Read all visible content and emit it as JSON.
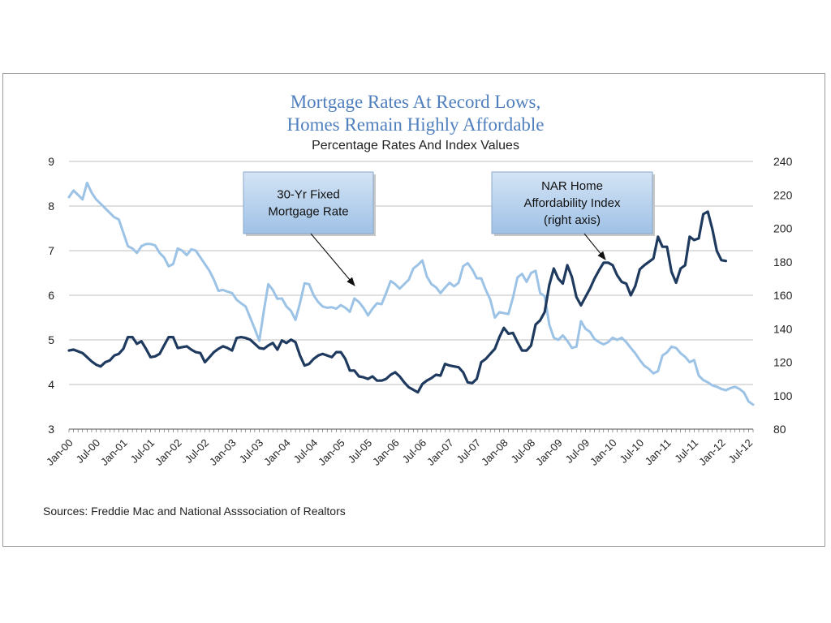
{
  "title_line1": "Mortgage Rates At Record Lows,",
  "title_line2": "Homes Remain Highly Affordable",
  "subtitle": "Percentage Rates And Index Values",
  "source": "Sources:  Freddie Mac and National Asssociation of Realtors",
  "colors": {
    "mortgage": "#9cc3e6",
    "affordability": "#1f3a5f",
    "grid": "#bfbfbf",
    "callout_fill": "#b3cfec",
    "title": "#4f7fbd"
  },
  "chart_data": {
    "type": "line",
    "title": "Mortgage Rates At Record Lows, Homes Remain Highly Affordable",
    "subtitle": "Percentage Rates And Index Values",
    "x_ticks": [
      "Jan-00",
      "Jul-00",
      "Jan-01",
      "Jul-01",
      "Jan-02",
      "Jul-02",
      "Jan-03",
      "Jul-03",
      "Jan-04",
      "Jul-04",
      "Jan-05",
      "Jul-05",
      "Jan-06",
      "Jul-06",
      "Jan-07",
      "Jul-07",
      "Jan-08",
      "Jul-08",
      "Jan-09",
      "Jul-09",
      "Jan-10",
      "Jul-10",
      "Jan-11",
      "Jul-11",
      "Jan-12",
      "Jul-12"
    ],
    "y_left": {
      "min": 3,
      "max": 9,
      "ticks": [
        "3",
        "4",
        "5",
        "6",
        "7",
        "8",
        "9"
      ]
    },
    "y_right": {
      "min": 80,
      "max": 240,
      "ticks": [
        "80",
        "100",
        "120",
        "140",
        "160",
        "180",
        "200",
        "220",
        "240"
      ]
    },
    "grid": "horizontal",
    "callouts": [
      {
        "label_lines": [
          "30-Yr Fixed",
          "Mortgage Rate"
        ]
      },
      {
        "label_lines": [
          "NAR Home",
          "Affordability Index",
          "(right axis)"
        ]
      }
    ],
    "series": [
      {
        "name": "30-Yr Fixed Mortgage Rate",
        "axis": "left",
        "start": "Jan-00",
        "frequency": "monthly",
        "values": [
          8.2,
          8.35,
          8.25,
          8.15,
          8.52,
          8.3,
          8.15,
          8.05,
          7.95,
          7.85,
          7.75,
          7.7,
          7.4,
          7.1,
          7.05,
          6.95,
          7.1,
          7.15,
          7.15,
          7.12,
          6.95,
          6.85,
          6.65,
          6.7,
          7.05,
          7.0,
          6.9,
          7.03,
          7.0,
          6.85,
          6.7,
          6.55,
          6.35,
          6.1,
          6.12,
          6.08,
          6.05,
          5.9,
          5.82,
          5.75,
          5.5,
          5.25,
          4.98,
          5.65,
          6.25,
          6.12,
          5.92,
          5.93,
          5.75,
          5.65,
          5.45,
          5.83,
          6.27,
          6.25,
          6.0,
          5.85,
          5.75,
          5.72,
          5.73,
          5.7,
          5.78,
          5.72,
          5.63,
          5.93,
          5.85,
          5.72,
          5.55,
          5.7,
          5.82,
          5.8,
          6.05,
          6.32,
          6.25,
          6.15,
          6.25,
          6.35,
          6.6,
          6.68,
          6.78,
          6.42,
          6.25,
          6.18,
          6.05,
          6.17,
          6.28,
          6.2,
          6.28,
          6.65,
          6.72,
          6.58,
          6.38,
          6.38,
          6.12,
          5.9,
          5.5,
          5.62,
          5.6,
          5.58,
          5.95,
          6.4,
          6.48,
          6.3,
          6.5,
          6.55,
          6.05,
          5.98,
          5.35,
          5.05,
          5.0,
          5.1,
          4.98,
          4.82,
          4.85,
          5.42,
          5.25,
          5.18,
          5.02,
          4.95,
          4.9,
          4.95,
          5.05,
          5.0,
          5.05,
          4.95,
          4.82,
          4.7,
          4.55,
          4.42,
          4.35,
          4.25,
          4.3,
          4.65,
          4.72,
          4.85,
          4.82,
          4.7,
          4.62,
          4.5,
          4.55,
          4.2,
          4.1,
          4.05,
          3.98,
          3.95,
          3.9,
          3.87,
          3.92,
          3.95,
          3.9,
          3.82,
          3.62,
          3.55
        ]
      },
      {
        "name": "NAR Home Affordability Index",
        "axis": "right",
        "start": "Jan-00",
        "frequency": "monthly",
        "values": [
          127,
          127.5,
          126.5,
          125.5,
          123,
          120.5,
          118.5,
          117.5,
          120,
          121,
          124,
          125,
          128,
          135,
          135,
          131,
          132.5,
          128,
          123,
          123.5,
          125,
          130,
          135,
          135,
          128.5,
          129,
          129.5,
          127.5,
          126,
          125.5,
          120,
          123,
          126,
          128,
          129.5,
          128.5,
          127,
          134.5,
          135,
          134.5,
          133.5,
          131,
          128.5,
          128,
          130,
          131.5,
          127.5,
          133,
          131.5,
          133.5,
          132,
          124,
          118,
          119,
          122,
          124,
          125,
          124,
          123,
          126,
          126,
          122,
          115,
          115,
          111.5,
          111,
          110,
          111.5,
          109,
          109,
          110,
          112.5,
          114,
          111.5,
          108,
          105,
          103.5,
          102,
          107,
          109,
          110.5,
          112.5,
          112,
          119,
          118,
          117.5,
          117,
          114,
          108,
          107.5,
          110,
          120,
          122,
          125,
          128,
          135,
          140.5,
          137,
          137.5,
          132,
          127,
          127,
          130,
          142.5,
          145,
          150,
          166,
          176,
          170,
          167,
          178,
          171,
          159,
          154,
          159,
          164,
          170,
          175,
          179.5,
          179.5,
          178,
          172,
          168,
          167,
          160,
          165.5,
          175.5,
          178,
          180,
          182,
          195,
          189,
          189,
          174,
          167.5,
          176,
          178,
          195,
          193,
          194,
          208.5,
          210,
          199.5,
          186.5,
          181,
          180.5
        ]
      }
    ]
  }
}
